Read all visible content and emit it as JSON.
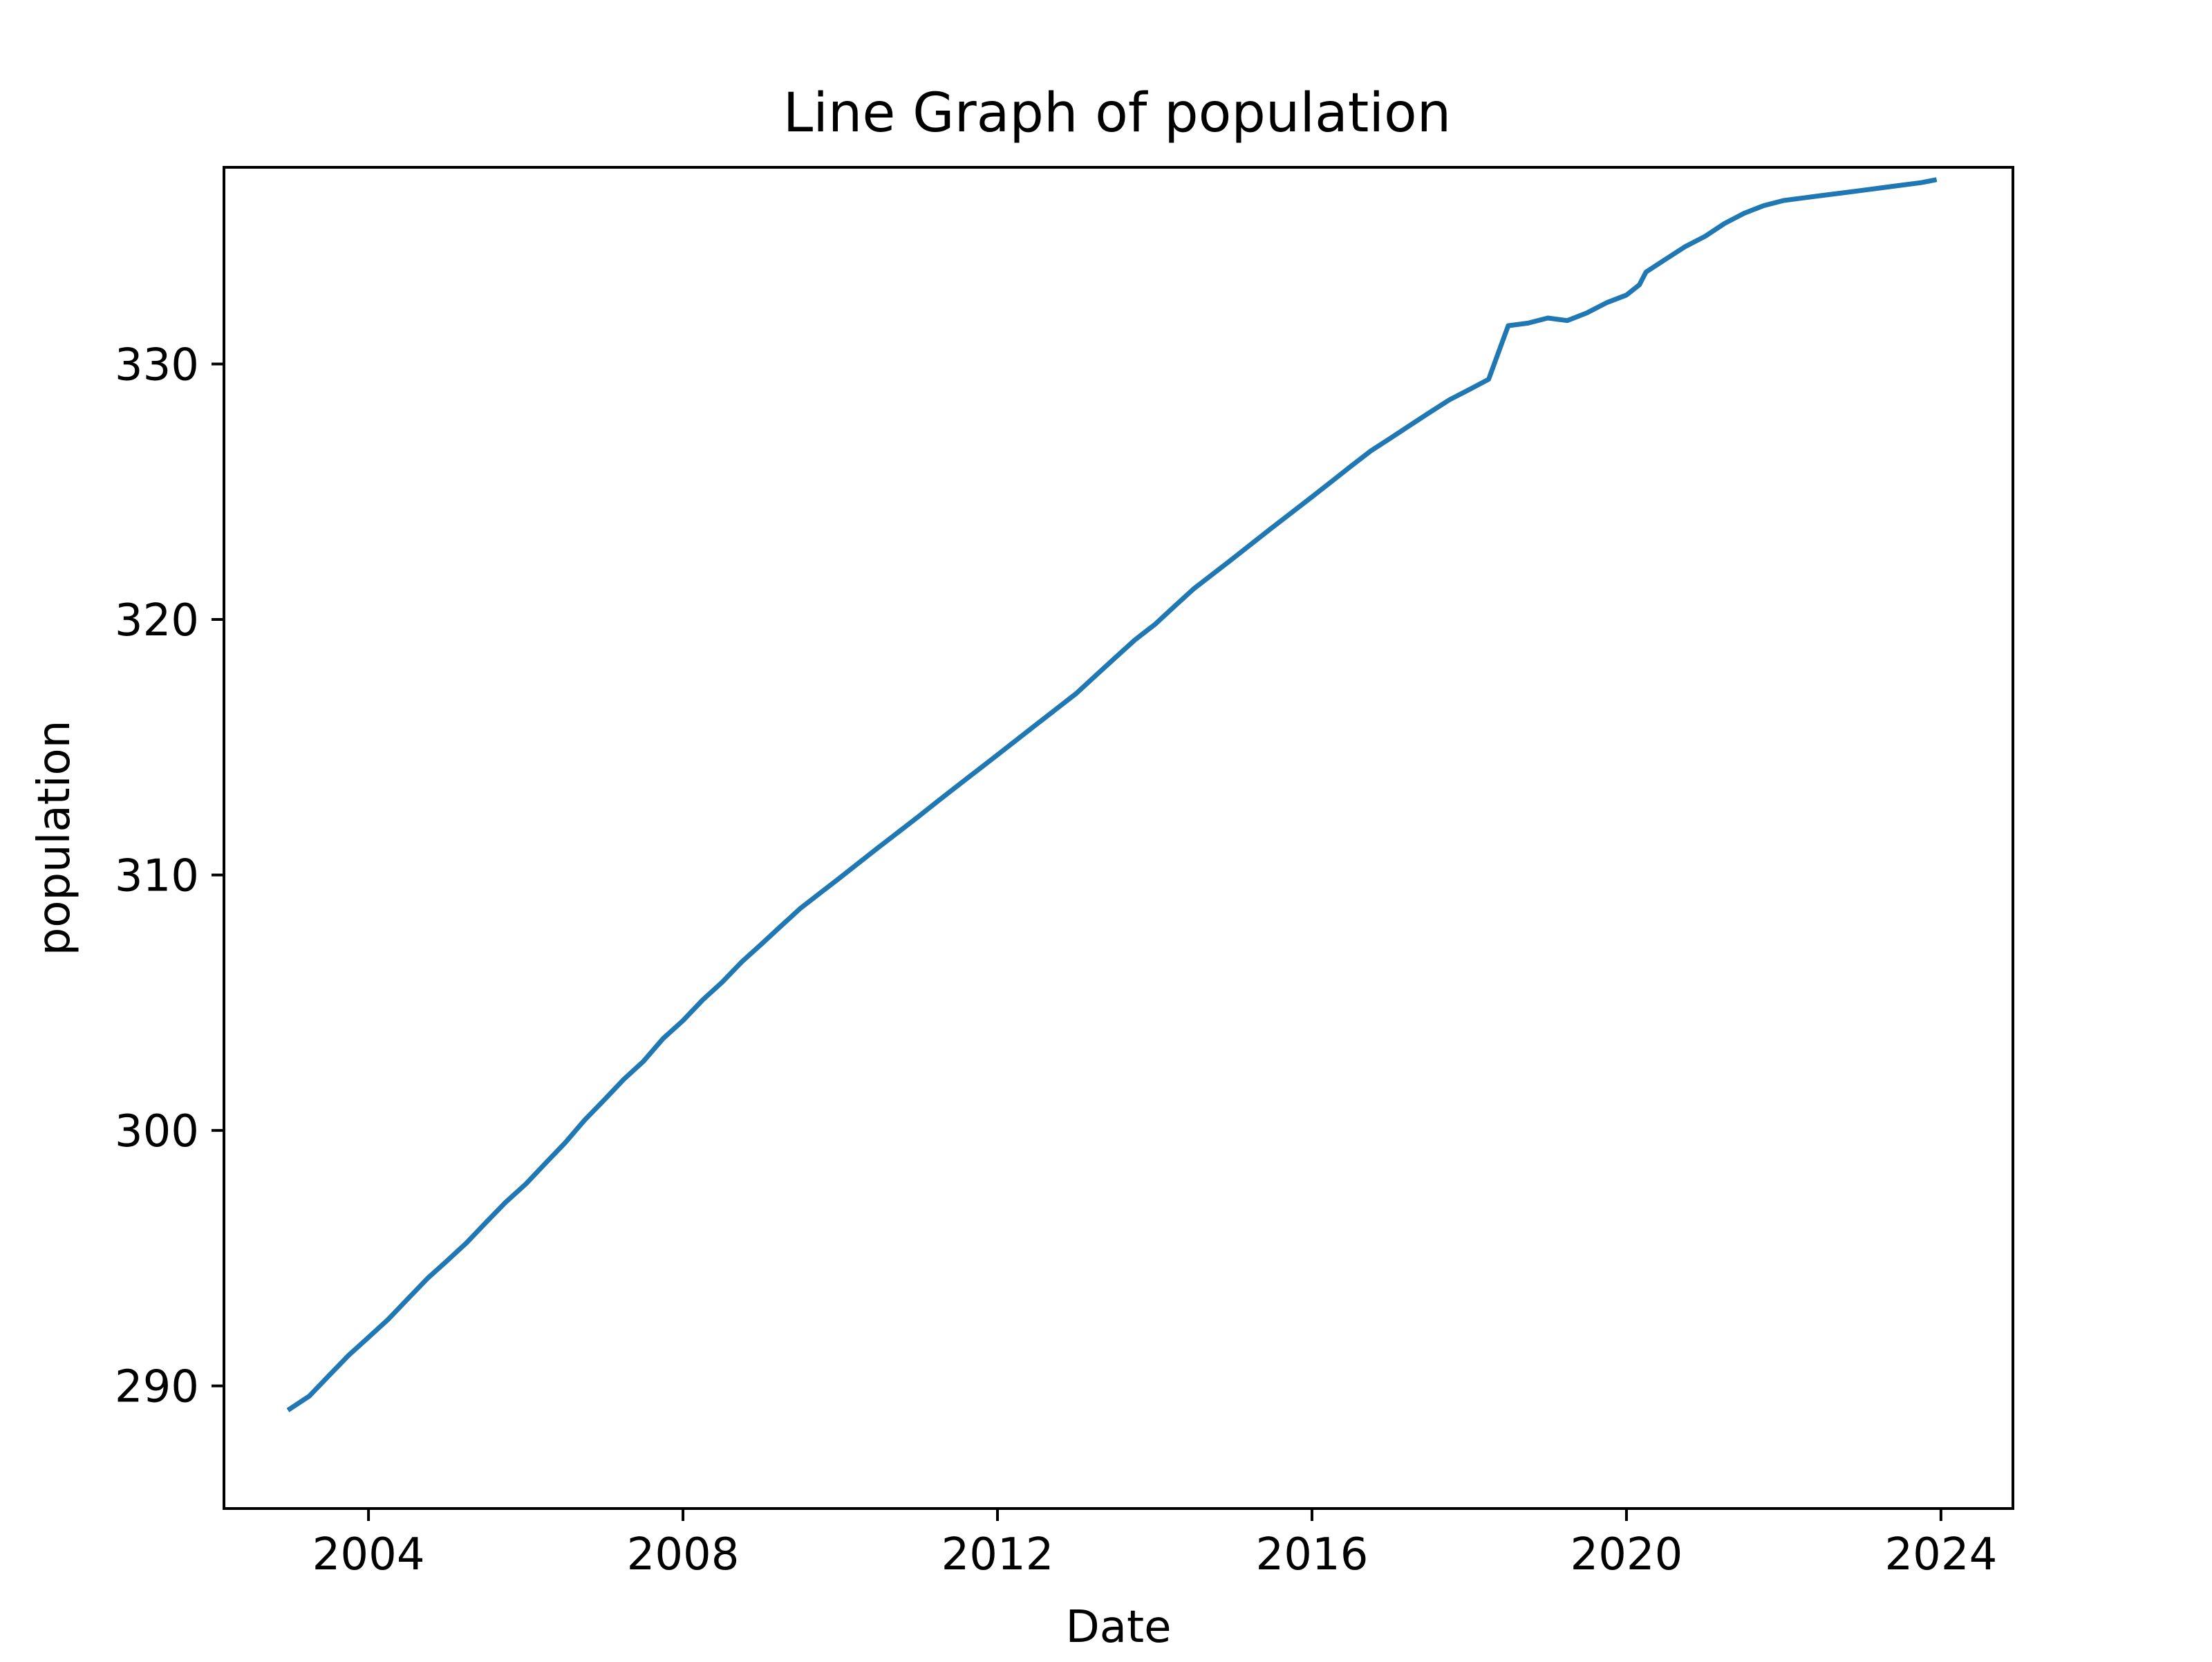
{
  "chart_data": {
    "type": "line",
    "title": "Line Graph of population",
    "xlabel": "Date",
    "ylabel": "population",
    "x_ticks": [
      "2004",
      "2008",
      "2012",
      "2016",
      "2020",
      "2024"
    ],
    "y_ticks": [
      "290",
      "300",
      "310",
      "320",
      "330"
    ],
    "xlim": [
      "2002-03-01",
      "2024-12-01"
    ],
    "ylim": [
      285.2,
      337.7
    ],
    "grid": false,
    "legend": "none",
    "series": [
      {
        "color": "#1f77b4",
        "x": [
          "2003-01-01",
          "2003-04-01",
          "2003-07-01",
          "2003-10-01",
          "2004-01-01",
          "2004-04-01",
          "2004-07-01",
          "2004-10-01",
          "2005-01-01",
          "2005-04-01",
          "2005-07-01",
          "2005-10-01",
          "2006-01-01",
          "2006-04-01",
          "2006-07-01",
          "2006-10-01",
          "2007-01-01",
          "2007-04-01",
          "2007-07-01",
          "2007-10-01",
          "2008-01-01",
          "2008-04-01",
          "2008-07-01",
          "2008-10-01",
          "2009-01-01",
          "2009-04-01",
          "2009-07-01",
          "2009-10-01",
          "2010-01-01",
          "2010-04-01",
          "2010-07-01",
          "2010-10-01",
          "2011-01-01",
          "2011-04-01",
          "2011-07-01",
          "2011-10-01",
          "2012-01-01",
          "2012-04-01",
          "2012-07-01",
          "2012-10-01",
          "2013-01-01",
          "2013-04-01",
          "2013-07-01",
          "2013-10-01",
          "2014-01-01",
          "2014-04-01",
          "2014-07-01",
          "2014-10-01",
          "2015-01-01",
          "2015-04-01",
          "2015-07-01",
          "2015-10-01",
          "2016-01-01",
          "2016-04-01",
          "2016-07-01",
          "2016-10-01",
          "2017-01-01",
          "2017-04-01",
          "2017-07-01",
          "2017-10-01",
          "2018-01-01",
          "2018-04-01",
          "2018-07-01",
          "2018-10-01",
          "2019-01-01",
          "2019-04-01",
          "2019-07-01",
          "2019-10-01",
          "2020-01-01",
          "2020-03-01",
          "2020-04-01",
          "2020-07-01",
          "2020-10-01",
          "2021-01-01",
          "2021-04-01",
          "2021-07-01",
          "2021-10-01",
          "2022-01-01",
          "2022-04-01",
          "2022-07-01",
          "2022-10-01",
          "2023-01-01",
          "2023-04-01",
          "2023-07-01",
          "2023-10-01",
          "2023-12-01"
        ],
        "y": [
          289.1,
          289.6,
          290.4,
          291.2,
          291.9,
          292.6,
          293.4,
          294.2,
          294.9,
          295.6,
          296.4,
          297.2,
          297.9,
          298.7,
          299.5,
          300.4,
          301.2,
          302.0,
          302.7,
          303.6,
          304.3,
          305.1,
          305.8,
          306.6,
          307.3,
          308.0,
          308.7,
          309.3,
          309.9,
          310.5,
          311.1,
          311.7,
          312.3,
          312.9,
          313.5,
          314.1,
          314.7,
          315.3,
          315.9,
          316.5,
          317.1,
          317.8,
          318.5,
          319.2,
          319.8,
          320.5,
          321.2,
          321.8,
          322.4,
          323.0,
          323.6,
          324.2,
          324.8,
          325.4,
          326.0,
          326.6,
          327.1,
          327.6,
          328.1,
          328.6,
          329.0,
          329.4,
          331.5,
          331.6,
          331.8,
          331.7,
          332.0,
          332.4,
          332.7,
          333.1,
          333.6,
          334.1,
          334.6,
          335.0,
          335.5,
          335.9,
          336.2,
          336.4,
          336.5,
          336.6,
          336.7,
          336.8,
          336.9,
          337.0,
          337.1,
          337.2
        ]
      }
    ]
  }
}
